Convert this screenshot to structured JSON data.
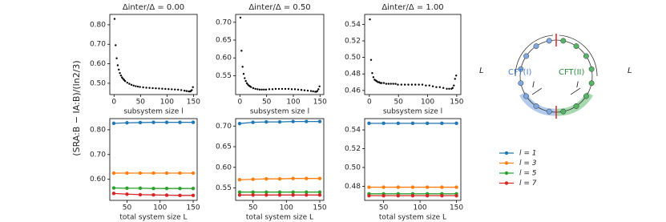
{
  "chart_data": [
    {
      "type": "scatter",
      "title": "Δinter/Δ = 0.00",
      "xlabel": "subsystem size l",
      "color": "#000000",
      "x": [
        1,
        3,
        5,
        7,
        9,
        11,
        13,
        15,
        17,
        19,
        21,
        25,
        29,
        33,
        37,
        41,
        45,
        49,
        55,
        61,
        67,
        73,
        79,
        85,
        91,
        97,
        103,
        109,
        115,
        121,
        127,
        133,
        137,
        141,
        143,
        145,
        147,
        149
      ],
      "values": [
        0.83,
        0.695,
        0.628,
        0.592,
        0.57,
        0.552,
        0.54,
        0.53,
        0.523,
        0.517,
        0.511,
        0.503,
        0.497,
        0.492,
        0.488,
        0.485,
        0.483,
        0.481,
        0.479,
        0.477,
        0.476,
        0.475,
        0.474,
        0.473,
        0.472,
        0.471,
        0.47,
        0.469,
        0.468,
        0.467,
        0.465,
        0.462,
        0.46,
        0.458,
        0.458,
        0.46,
        0.465,
        0.48
      ],
      "xlim": [
        -8,
        157
      ],
      "xticks": [
        0,
        50,
        100,
        150
      ],
      "ylim": [
        0.442,
        0.853
      ],
      "yticks": [
        {
          "value": 0.5,
          "label": "0.50"
        },
        {
          "value": 0.6,
          "label": "0.60"
        },
        {
          "value": 0.7,
          "label": "0.70"
        },
        {
          "value": 0.8,
          "label": "0.80"
        }
      ]
    },
    {
      "type": "scatter",
      "title": "Δinter/Δ = 0.50",
      "xlabel": "subsystem size l",
      "color": "#000000",
      "x": [
        1,
        3,
        5,
        7,
        9,
        11,
        13,
        15,
        17,
        19,
        21,
        25,
        29,
        33,
        37,
        41,
        45,
        49,
        55,
        61,
        67,
        73,
        79,
        85,
        91,
        97,
        103,
        109,
        115,
        121,
        127,
        133,
        137,
        141,
        143,
        145,
        147,
        149
      ],
      "values": [
        0.713,
        0.62,
        0.575,
        0.555,
        0.543,
        0.535,
        0.529,
        0.525,
        0.522,
        0.52,
        0.518,
        0.515,
        0.513,
        0.512,
        0.511,
        0.511,
        0.511,
        0.511,
        0.512,
        0.512,
        0.513,
        0.513,
        0.513,
        0.513,
        0.513,
        0.512,
        0.512,
        0.511,
        0.51,
        0.509,
        0.508,
        0.507,
        0.506,
        0.505,
        0.505,
        0.507,
        0.512,
        0.52
      ],
      "xlim": [
        -8,
        157
      ],
      "xticks": [
        0,
        50,
        100,
        150
      ],
      "ylim": [
        0.497,
        0.722
      ],
      "yticks": [
        0.55,
        {
          "value": 0.6,
          "label": "0.60"
        },
        0.65,
        {
          "value": 0.7,
          "label": "0.70"
        }
      ]
    },
    {
      "type": "scatter",
      "title": "Δinter/Δ = 1.00",
      "xlabel": "subsystem size l",
      "color": "#000000",
      "x": [
        1,
        3,
        5,
        7,
        9,
        11,
        13,
        15,
        17,
        19,
        21,
        25,
        29,
        33,
        37,
        41,
        45,
        49,
        55,
        61,
        67,
        73,
        79,
        85,
        91,
        97,
        103,
        109,
        115,
        121,
        127,
        133,
        137,
        141,
        143,
        145,
        147,
        149
      ],
      "values": [
        0.546,
        0.497,
        0.481,
        0.476,
        0.473,
        0.472,
        0.471,
        0.47,
        0.47,
        0.469,
        0.469,
        0.469,
        0.468,
        0.468,
        0.468,
        0.468,
        0.468,
        0.467,
        0.467,
        0.467,
        0.467,
        0.467,
        0.467,
        0.467,
        0.467,
        0.466,
        0.466,
        0.465,
        0.464,
        0.464,
        0.463,
        0.462,
        0.462,
        0.462,
        0.463,
        0.466,
        0.474,
        0.478
      ],
      "xlim": [
        -8,
        157
      ],
      "xticks": [
        0,
        50,
        100,
        150
      ],
      "ylim": [
        0.455,
        0.552
      ],
      "yticks": [
        0.46,
        0.48,
        {
          "value": 0.5,
          "label": "0.50"
        },
        0.52,
        0.54
      ]
    },
    {
      "type": "line",
      "xlabel": "total system size L",
      "x": [
        30,
        50,
        70,
        90,
        110,
        130,
        150
      ],
      "series": [
        {
          "name": "l = 1",
          "color": "#1f77b4",
          "values": [
            0.826,
            0.828,
            0.829,
            0.83,
            0.83,
            0.83,
            0.83
          ]
        },
        {
          "name": "l = 3",
          "color": "#ff7f0e",
          "values": [
            0.625,
            0.625,
            0.625,
            0.625,
            0.625,
            0.625,
            0.625
          ]
        },
        {
          "name": "l = 5",
          "color": "#2ca02c",
          "values": [
            0.565,
            0.564,
            0.564,
            0.563,
            0.563,
            0.563,
            0.563
          ]
        },
        {
          "name": "l = 7",
          "color": "#d62728",
          "values": [
            0.543,
            0.54,
            0.538,
            0.537,
            0.536,
            0.535,
            0.535
          ]
        }
      ],
      "xlim": [
        24,
        156
      ],
      "xticks": [
        50,
        100,
        150
      ],
      "ylim": [
        0.515,
        0.845
      ],
      "yticks": [
        {
          "value": 0.6,
          "label": "0.60"
        },
        {
          "value": 0.7,
          "label": "0.70"
        },
        {
          "value": 0.8,
          "label": "0.80"
        }
      ]
    },
    {
      "type": "line",
      "xlabel": "total system size L",
      "x": [
        30,
        50,
        70,
        90,
        110,
        130,
        150
      ],
      "series": [
        {
          "name": "l = 1",
          "color": "#1f77b4",
          "values": [
            0.706,
            0.709,
            0.71,
            0.71,
            0.711,
            0.711,
            0.711
          ]
        },
        {
          "name": "l = 3",
          "color": "#ff7f0e",
          "values": [
            0.57,
            0.571,
            0.572,
            0.572,
            0.573,
            0.573,
            0.573
          ]
        },
        {
          "name": "l = 5",
          "color": "#2ca02c",
          "values": [
            0.54,
            0.54,
            0.54,
            0.54,
            0.54,
            0.54,
            0.54
          ]
        },
        {
          "name": "l = 7",
          "color": "#d62728",
          "values": [
            0.533,
            0.533,
            0.533,
            0.533,
            0.533,
            0.533,
            0.533
          ]
        }
      ],
      "xlim": [
        24,
        156
      ],
      "xticks": [
        50,
        100,
        150
      ],
      "ylim": [
        0.52,
        0.718
      ],
      "yticks": [
        0.55,
        {
          "value": 0.6,
          "label": "0.60"
        },
        0.65,
        {
          "value": 0.7,
          "label": "0.70"
        }
      ]
    },
    {
      "type": "line",
      "xlabel": "total system size L",
      "legend": "right",
      "x": [
        30,
        50,
        70,
        90,
        110,
        130,
        150
      ],
      "series": [
        {
          "name": "l = 1",
          "color": "#1f77b4",
          "values": [
            0.547,
            0.547,
            0.547,
            0.547,
            0.547,
            0.547,
            0.547
          ]
        },
        {
          "name": "l = 3",
          "color": "#ff7f0e",
          "values": [
            0.479,
            0.479,
            0.479,
            0.479,
            0.479,
            0.479,
            0.479
          ]
        },
        {
          "name": "l = 5",
          "color": "#2ca02c",
          "values": [
            0.472,
            0.472,
            0.472,
            0.472,
            0.472,
            0.472,
            0.472
          ]
        },
        {
          "name": "l = 7",
          "color": "#d62728",
          "values": [
            0.47,
            0.47,
            0.47,
            0.47,
            0.47,
            0.47,
            0.47
          ]
        }
      ],
      "xlim": [
        24,
        156
      ],
      "xticks": [
        50,
        100,
        150
      ],
      "ylim": [
        0.465,
        0.552
      ],
      "yticks": [
        0.48,
        {
          "value": 0.5,
          "label": "0.50"
        },
        0.52,
        0.54
      ]
    }
  ],
  "y_label": "(SRA:B − IA:B)/(ln2/3)",
  "diagram": {
    "cft1": "CFT(I)",
    "cft2": "CFT(II)",
    "left_L": "L",
    "right_L": "L",
    "left_l": "l",
    "right_l": "l"
  }
}
